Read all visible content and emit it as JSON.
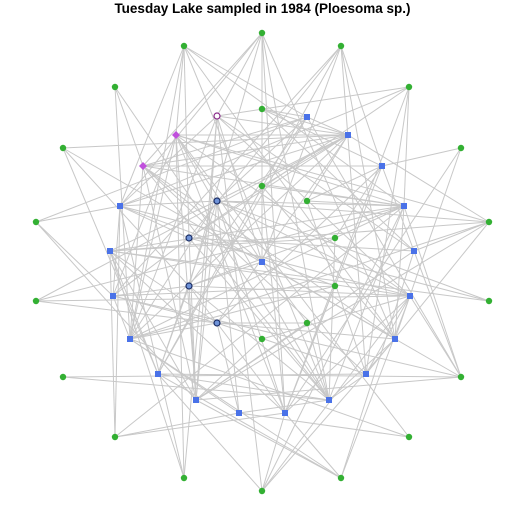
{
  "title": "Tuesday Lake sampled in 1984 (Ploesoma sp.)",
  "colors": {
    "edge": "#c8c8c8",
    "producer": "#33b033",
    "consumer": "#4a72e8",
    "circle_node_fill": "#6f93d8",
    "circle_node_outline": "#1c2f66",
    "top_outline": "#8a2a8a",
    "top_diamond": "#c050dc"
  },
  "node_types": {
    "producer": "green-circle",
    "consumer": "blue-square",
    "consumer_circle": "blue-outlined-circle",
    "top_circle": "white-outlined-circle",
    "top_diamond": "purple-diamond"
  },
  "edge_count": 240
}
